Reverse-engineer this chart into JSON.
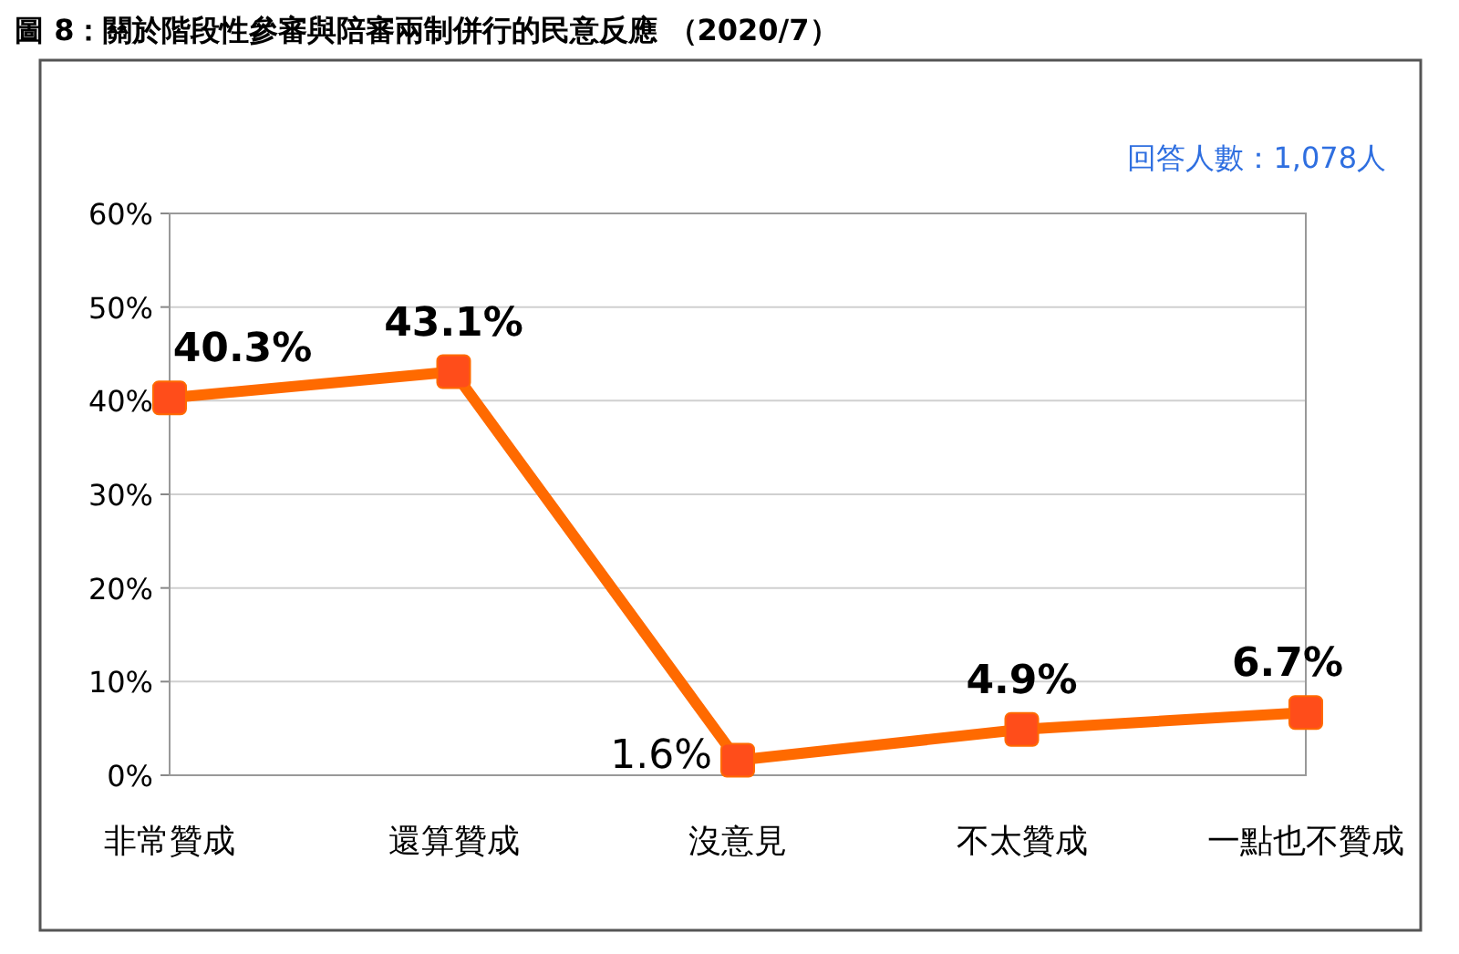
{
  "chart_data": {
    "type": "line",
    "title": "圖 8：關於階段性參審與陪審兩制併行的民意反應 （2020/7）",
    "annotations": [
      "回答人數：1,078人"
    ],
    "categories": [
      "非常贊成",
      "還算贊成",
      "沒意見",
      "不太贊成",
      "一點也不贊成"
    ],
    "series": [
      {
        "color": "#ff6a00",
        "values": [
          40.3,
          43.1,
          1.6,
          4.9,
          6.7
        ]
      }
    ],
    "value_labels": [
      "40.3%",
      "43.1%",
      "1.6%",
      "4.9%",
      "6.7%"
    ],
    "ylim": [
      0,
      60
    ],
    "yticks": [
      {
        "value": 0,
        "label": "0%"
      },
      {
        "value": 10,
        "label": "10%"
      },
      {
        "value": 20,
        "label": "20%"
      },
      {
        "value": 30,
        "label": "30%"
      },
      {
        "value": 40,
        "label": "40%"
      },
      {
        "value": 50,
        "label": "50%"
      },
      {
        "value": 60,
        "label": "60%"
      }
    ],
    "grid": "y",
    "marker": "square",
    "line_style": "solid"
  }
}
